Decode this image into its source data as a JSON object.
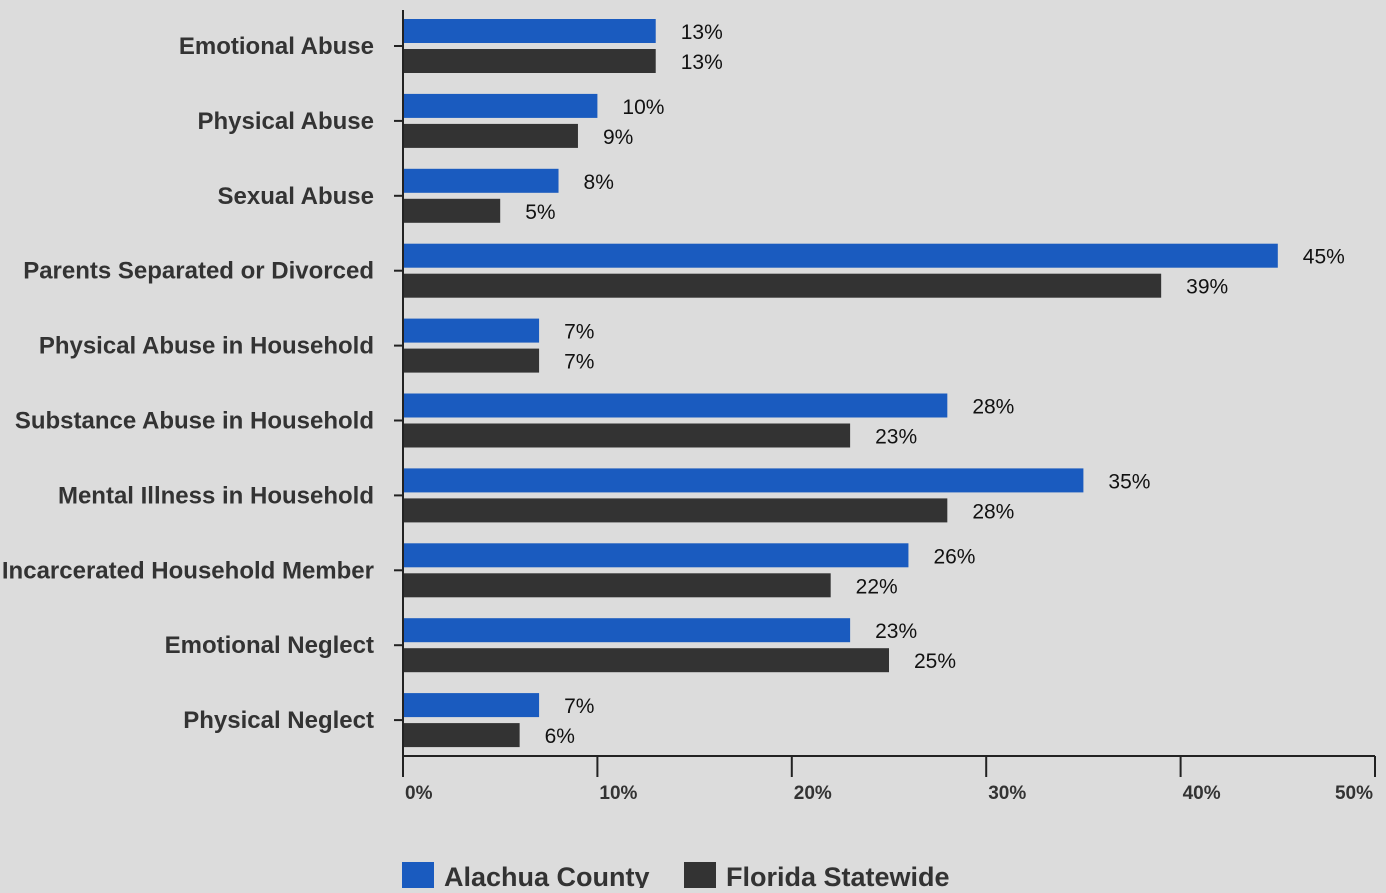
{
  "chart_data": {
    "type": "bar",
    "orientation": "horizontal",
    "categories": [
      "Emotional Abuse",
      "Physical Abuse",
      "Sexual Abuse",
      "Parents Separated or Divorced",
      "Physical Abuse in Household",
      "Substance Abuse in Household",
      "Mental Illness in Household",
      "Incarcerated Household Member",
      "Emotional Neglect",
      "Physical Neglect"
    ],
    "series": [
      {
        "name": "Alachua County",
        "color": "#1a5bbf",
        "values": [
          13,
          10,
          8,
          45,
          7,
          28,
          35,
          26,
          23,
          7
        ],
        "labels": [
          "13%",
          "10%",
          "8%",
          "45%",
          "7%",
          "28%",
          "35%",
          "26%",
          "23%",
          "7%"
        ]
      },
      {
        "name": "Florida Statewide",
        "color": "#333333",
        "values": [
          13,
          9,
          5,
          39,
          7,
          23,
          28,
          22,
          25,
          6
        ],
        "labels": [
          "13%",
          "9%",
          "5%",
          "39%",
          "7%",
          "23%",
          "28%",
          "22%",
          "25%",
          "6%"
        ]
      }
    ],
    "xlim": [
      0,
      50
    ],
    "xticks": [
      0,
      10,
      20,
      30,
      40,
      50
    ],
    "xtick_labels": [
      "0%",
      "10%",
      "20%",
      "30%",
      "40%",
      "50%"
    ],
    "grid": false,
    "legend_position": "bottom-left"
  }
}
